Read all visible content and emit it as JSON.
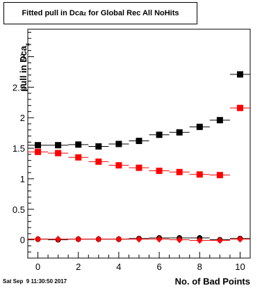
{
  "title": {
    "prefix": "Fitted pull in Dca",
    "sub": "z",
    "suffix": " for Global Rec All NoHits"
  },
  "timestamp": "Sat Sep  9 11:30:50 2017",
  "chart_data": {
    "type": "scatter",
    "xlabel": "No. of Bad Points",
    "ylabel": {
      "prefix": "pull in Dca",
      "sub": "z"
    },
    "xlim": [
      -0.5,
      10.5
    ],
    "ylim": [
      -0.3,
      3.45
    ],
    "xticks": [
      0,
      2,
      4,
      6,
      8,
      10
    ],
    "yticks": [
      0,
      0.5,
      1,
      1.5,
      2,
      2.5,
      3
    ],
    "ytick_labels": [
      "0",
      "0.5",
      "1",
      "1.5",
      "2",
      "2.5",
      "3"
    ],
    "grid": false,
    "series": [
      {
        "marker": "square",
        "color": "#000000",
        "x": [
          0,
          1,
          2,
          3,
          4,
          5,
          6,
          7,
          8,
          9,
          10
        ],
        "y": [
          1.55,
          1.55,
          1.56,
          1.53,
          1.57,
          1.62,
          1.72,
          1.76,
          1.85,
          1.96,
          2.71
        ]
      },
      {
        "marker": "square",
        "color": "#ff0000",
        "x": [
          0,
          1,
          2,
          3,
          4,
          5,
          6,
          7,
          8,
          9
        ],
        "y": [
          1.44,
          1.42,
          1.35,
          1.28,
          1.22,
          1.18,
          1.13,
          1.11,
          1.07,
          1.06
        ]
      },
      {
        "marker": "square",
        "color": "#ff0000",
        "x": [
          10
        ],
        "y": [
          2.16
        ]
      },
      {
        "marker": "circle",
        "color": "#000000",
        "x": [
          0,
          1,
          2,
          3,
          4,
          5,
          6,
          7,
          8,
          9,
          10
        ],
        "y": [
          0.01,
          0.0,
          0.01,
          0.01,
          0.01,
          0.02,
          0.03,
          0.03,
          0.03,
          0.0,
          0.02
        ]
      },
      {
        "marker": "diamond",
        "color": "#ff0000",
        "x": [
          0,
          1,
          2,
          3,
          4,
          5,
          6,
          7,
          8,
          9,
          10
        ],
        "y": [
          0.01,
          0.01,
          0.01,
          0.01,
          0.01,
          0.01,
          0.01,
          0.0,
          -0.01,
          -0.01,
          0.01
        ]
      }
    ]
  }
}
